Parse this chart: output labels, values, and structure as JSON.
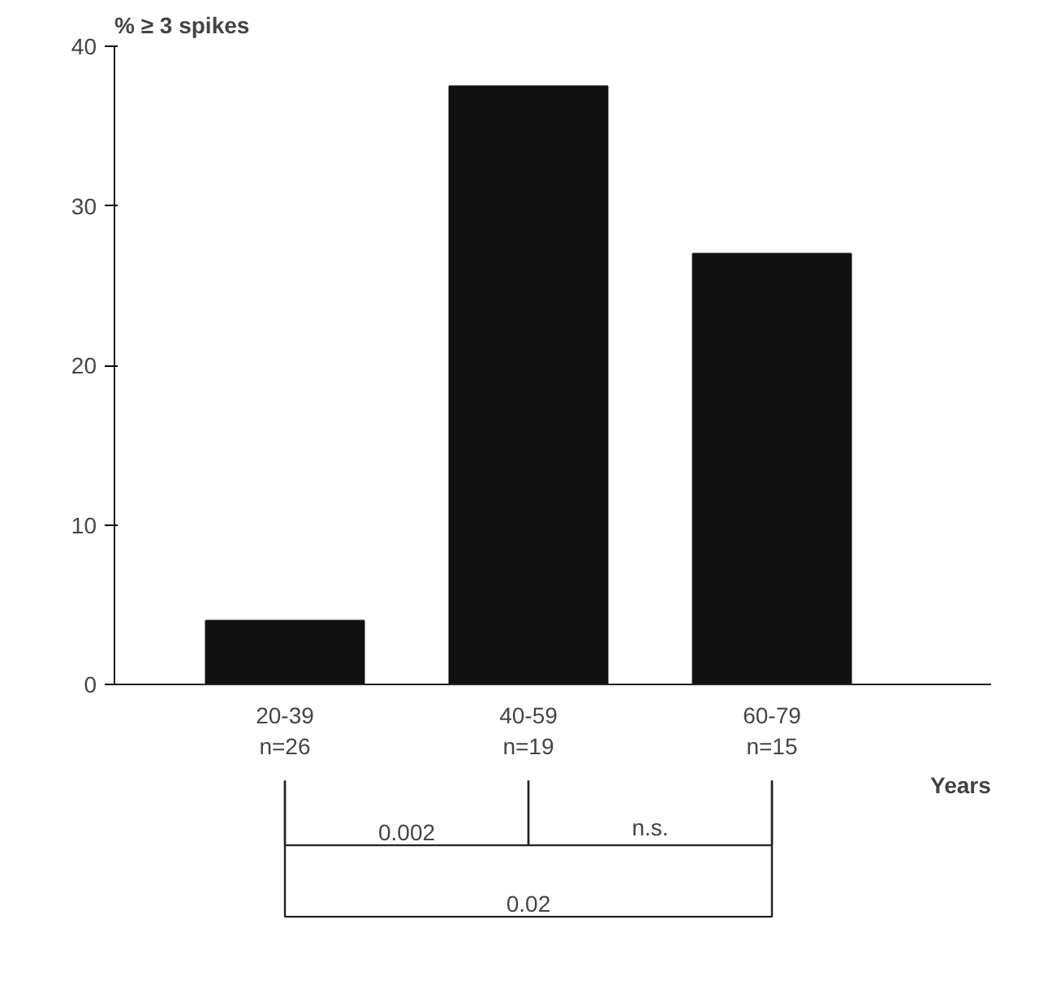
{
  "chart_data": {
    "type": "bar",
    "title": "% ≥ 3 spikes",
    "xlabel": "Years",
    "categories": [
      "20-39\nn=26",
      "40-59\nn=19",
      "60-79\nn=15"
    ],
    "values": [
      4,
      37.5,
      27
    ],
    "color": "#111111",
    "ylim": [
      0,
      40
    ],
    "yticks": [
      0,
      10,
      20,
      30,
      40
    ],
    "grid": false,
    "annotations": [
      "0.002",
      "n.s.",
      "0.02"
    ]
  }
}
